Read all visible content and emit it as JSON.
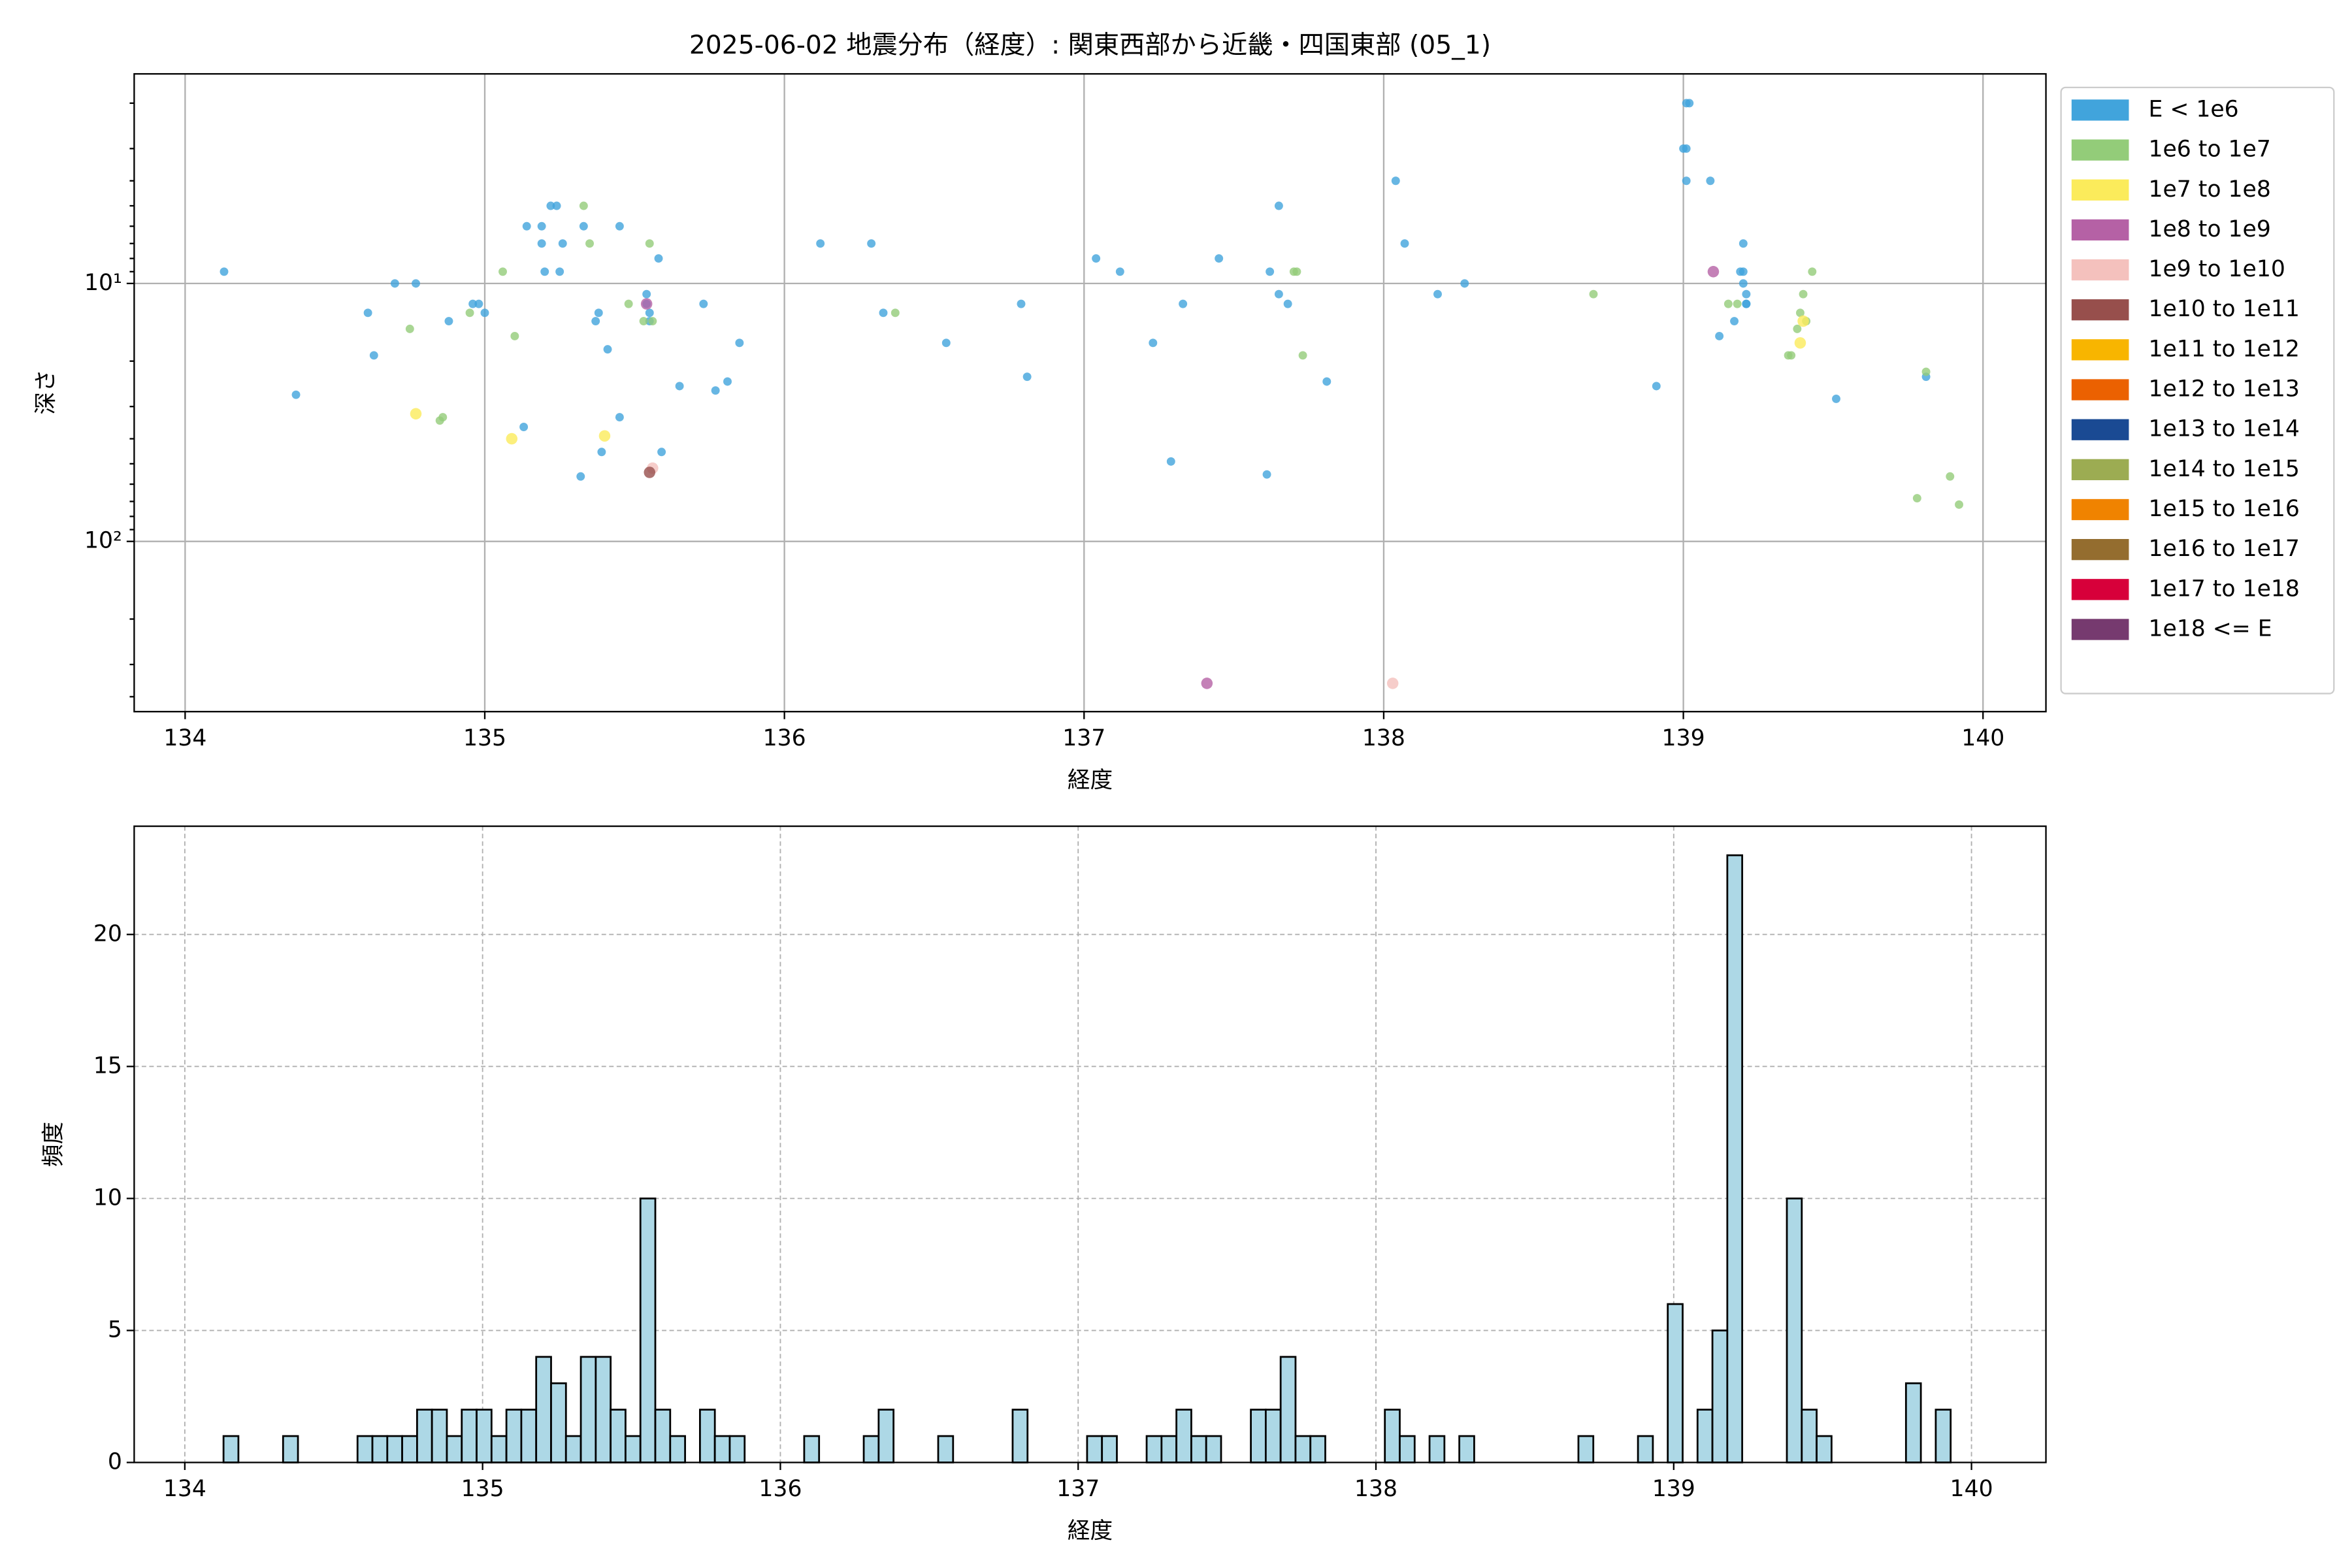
{
  "chart_data": [
    {
      "type": "scatter",
      "title": "2025-06-02 地震分布（経度）: 関東西部から近畿・四国東部 (05_1)",
      "x_label": "経度",
      "y_label": "深さ",
      "xlim": [
        133.83,
        140.21
      ],
      "xticks": [
        134,
        135,
        136,
        137,
        138,
        139,
        140
      ],
      "ylim": [
        1.54,
        457
      ],
      "y_log": true,
      "y_inverted": true,
      "yticks": [
        {
          "value": 10,
          "label": "10¹"
        },
        {
          "value": 100,
          "label": "10²"
        }
      ],
      "yminor": [
        2,
        3,
        4,
        5,
        6,
        7,
        8,
        9,
        20,
        30,
        40,
        50,
        60,
        70,
        80,
        90,
        200,
        300,
        400
      ],
      "grid": true,
      "legend": "outside right",
      "series": [
        {
          "name": "E < 1e6",
          "color": "#41a4dc",
          "x": [
            134.13,
            134.37,
            134.61,
            134.63,
            134.7,
            134.77,
            134.88,
            134.96,
            134.98,
            135.0,
            135.13,
            135.14,
            135.19,
            135.19,
            135.2,
            135.22,
            135.24,
            135.25,
            135.26,
            135.32,
            135.33,
            135.37,
            135.38,
            135.39,
            135.41,
            135.45,
            135.45,
            135.54,
            135.54,
            135.55,
            135.55,
            135.58,
            135.59,
            135.65,
            135.73,
            135.77,
            135.81,
            135.85,
            136.12,
            136.29,
            136.33,
            136.54,
            136.79,
            136.81,
            137.04,
            137.12,
            137.23,
            137.29,
            137.33,
            137.45,
            137.61,
            137.62,
            137.65,
            137.65,
            137.68,
            137.81,
            138.04,
            138.07,
            138.18,
            138.27,
            138.91,
            139.01,
            139.02,
            139.0,
            139.01,
            139.01,
            139.09,
            139.12,
            139.17,
            139.2,
            139.2,
            139.2,
            139.21,
            139.21,
            139.19,
            139.21,
            139.51,
            139.81
          ],
          "values": [
            9,
            27,
            13,
            19,
            10,
            10,
            14,
            12,
            12,
            13,
            36,
            6,
            6,
            7,
            9,
            5,
            5,
            9,
            7,
            56,
            6,
            14,
            13,
            45,
            18,
            33,
            6,
            11,
            12,
            13,
            14,
            8,
            45,
            25,
            12,
            26,
            24,
            17,
            7,
            7,
            13,
            17,
            12,
            23,
            8,
            9,
            17,
            49,
            12,
            8,
            55,
            9,
            5,
            11,
            12,
            24,
            4,
            7,
            11,
            10,
            25,
            2,
            2,
            3,
            3,
            4,
            4,
            16,
            14,
            7,
            9,
            10,
            11,
            12,
            9,
            12,
            28,
            23
          ]
        },
        {
          "name": "1e6 to 1e7",
          "color": "#93cc79",
          "x": [
            134.75,
            134.85,
            134.86,
            134.95,
            135.06,
            135.1,
            135.33,
            135.35,
            135.48,
            135.53,
            135.55,
            135.56,
            136.37,
            137.7,
            137.71,
            137.73,
            138.7,
            139.15,
            139.18,
            139.35,
            139.36,
            139.38,
            139.39,
            139.4,
            139.43,
            139.81,
            139.78,
            139.89,
            139.92,
            139.41
          ],
          "values": [
            15,
            34,
            33,
            13,
            9,
            16,
            5,
            7,
            12,
            14,
            7,
            14,
            13,
            9,
            9,
            19,
            11,
            12,
            12,
            19,
            19,
            15,
            13,
            11,
            9,
            22,
            68,
            56,
            72,
            14
          ]
        },
        {
          "name": "1e7 to 1e8",
          "color": "#fbeb5b",
          "x": [
            134.77,
            135.09,
            135.4,
            139.39,
            139.4
          ],
          "values": [
            32,
            40,
            39,
            17,
            14
          ]
        },
        {
          "name": "1e8 to 1e9",
          "color": "#b561a5",
          "x": [
            135.54,
            139.1,
            137.41
          ],
          "values": [
            12,
            9,
            355
          ]
        },
        {
          "name": "1e9 to 1e10",
          "color": "#f4c1bd",
          "x": [
            135.56,
            138.03
          ],
          "values": [
            52,
            355
          ]
        },
        {
          "name": "1e10 to 1e11",
          "color": "#974f4c",
          "x": [
            135.55
          ],
          "values": [
            54
          ]
        },
        {
          "name": "1e11 to 1e12",
          "color": "#f8b500",
          "x": [],
          "values": []
        },
        {
          "name": "1e12 to 1e13",
          "color": "#eb6101",
          "x": [],
          "values": []
        },
        {
          "name": "1e13 to 1e14",
          "color": "#1a4a93",
          "x": [],
          "values": []
        },
        {
          "name": "1e14 to 1e15",
          "color": "#9cac52",
          "x": [],
          "values": []
        },
        {
          "name": "1e15 to 1e16",
          "color": "#f08300",
          "x": [],
          "values": []
        },
        {
          "name": "1e16 to 1e17",
          "color": "#946d2f",
          "x": [],
          "values": []
        },
        {
          "name": "1e17 to 1e18",
          "color": "#d7003a",
          "x": [],
          "values": []
        },
        {
          "name": "1e18 <= E",
          "color": "#763a6f",
          "x": [],
          "values": []
        }
      ]
    },
    {
      "type": "histogram",
      "x_label": "経度",
      "y_label": "頻度",
      "xlim": [
        133.83,
        140.25
      ],
      "xticks": [
        134,
        135,
        136,
        137,
        138,
        139,
        140
      ],
      "ylim": [
        0,
        24.1
      ],
      "yticks": [
        0,
        5,
        10,
        15,
        20
      ],
      "grid": true,
      "color": "#add8e6",
      "bins": [
        134.13,
        134.18,
        134.23,
        134.28,
        134.33,
        134.38,
        134.43,
        134.48,
        134.53,
        134.58,
        134.63,
        134.68,
        134.73,
        134.78,
        134.83,
        134.88,
        134.93,
        134.98,
        135.03,
        135.08,
        135.13,
        135.18,
        135.23,
        135.28,
        135.33,
        135.38,
        135.43,
        135.48,
        135.53,
        135.58,
        135.63,
        135.68,
        135.73,
        135.78,
        135.83,
        135.88,
        135.93,
        135.98,
        136.03,
        136.08,
        136.13,
        136.18,
        136.23,
        136.28,
        136.33,
        136.38,
        136.43,
        136.48,
        136.53,
        136.58,
        136.63,
        136.68,
        136.73,
        136.78,
        136.83,
        136.88,
        136.93,
        136.98,
        137.03,
        137.08,
        137.13,
        137.18,
        137.23,
        137.28,
        137.33,
        137.38,
        137.43,
        137.48,
        137.53,
        137.58,
        137.63,
        137.68,
        137.73,
        137.78,
        137.83,
        137.88,
        137.93,
        137.98,
        138.03,
        138.08,
        138.13,
        138.18,
        138.23,
        138.28,
        138.33,
        138.38,
        138.43,
        138.48,
        138.53,
        138.58,
        138.63,
        138.68,
        138.73,
        138.78,
        138.83,
        138.88,
        138.93,
        138.98,
        139.03,
        139.08,
        139.13,
        139.18,
        139.23,
        139.28,
        139.33,
        139.38,
        139.43,
        139.48,
        139.53,
        139.58,
        139.63,
        139.68,
        139.73,
        139.78,
        139.83,
        139.88,
        139.93
      ],
      "values": [
        1,
        0,
        0,
        0,
        1,
        0,
        0,
        0,
        0,
        1,
        1,
        1,
        1,
        2,
        2,
        1,
        2,
        2,
        1,
        2,
        2,
        4,
        3,
        1,
        4,
        4,
        2,
        1,
        10,
        2,
        1,
        0,
        2,
        1,
        1,
        0,
        0,
        0,
        0,
        1,
        0,
        0,
        0,
        1,
        2,
        0,
        0,
        0,
        1,
        0,
        0,
        0,
        0,
        2,
        0,
        0,
        0,
        0,
        1,
        1,
        0,
        0,
        1,
        1,
        2,
        1,
        1,
        0,
        0,
        2,
        2,
        4,
        1,
        1,
        0,
        0,
        0,
        0,
        2,
        1,
        0,
        1,
        0,
        1,
        0,
        0,
        0,
        0,
        0,
        0,
        0,
        1,
        0,
        0,
        0,
        1,
        0,
        6,
        0,
        2,
        5,
        23,
        0,
        0,
        0,
        10,
        2,
        1,
        0,
        0,
        0,
        0,
        0,
        3,
        0,
        2
      ]
    }
  ]
}
